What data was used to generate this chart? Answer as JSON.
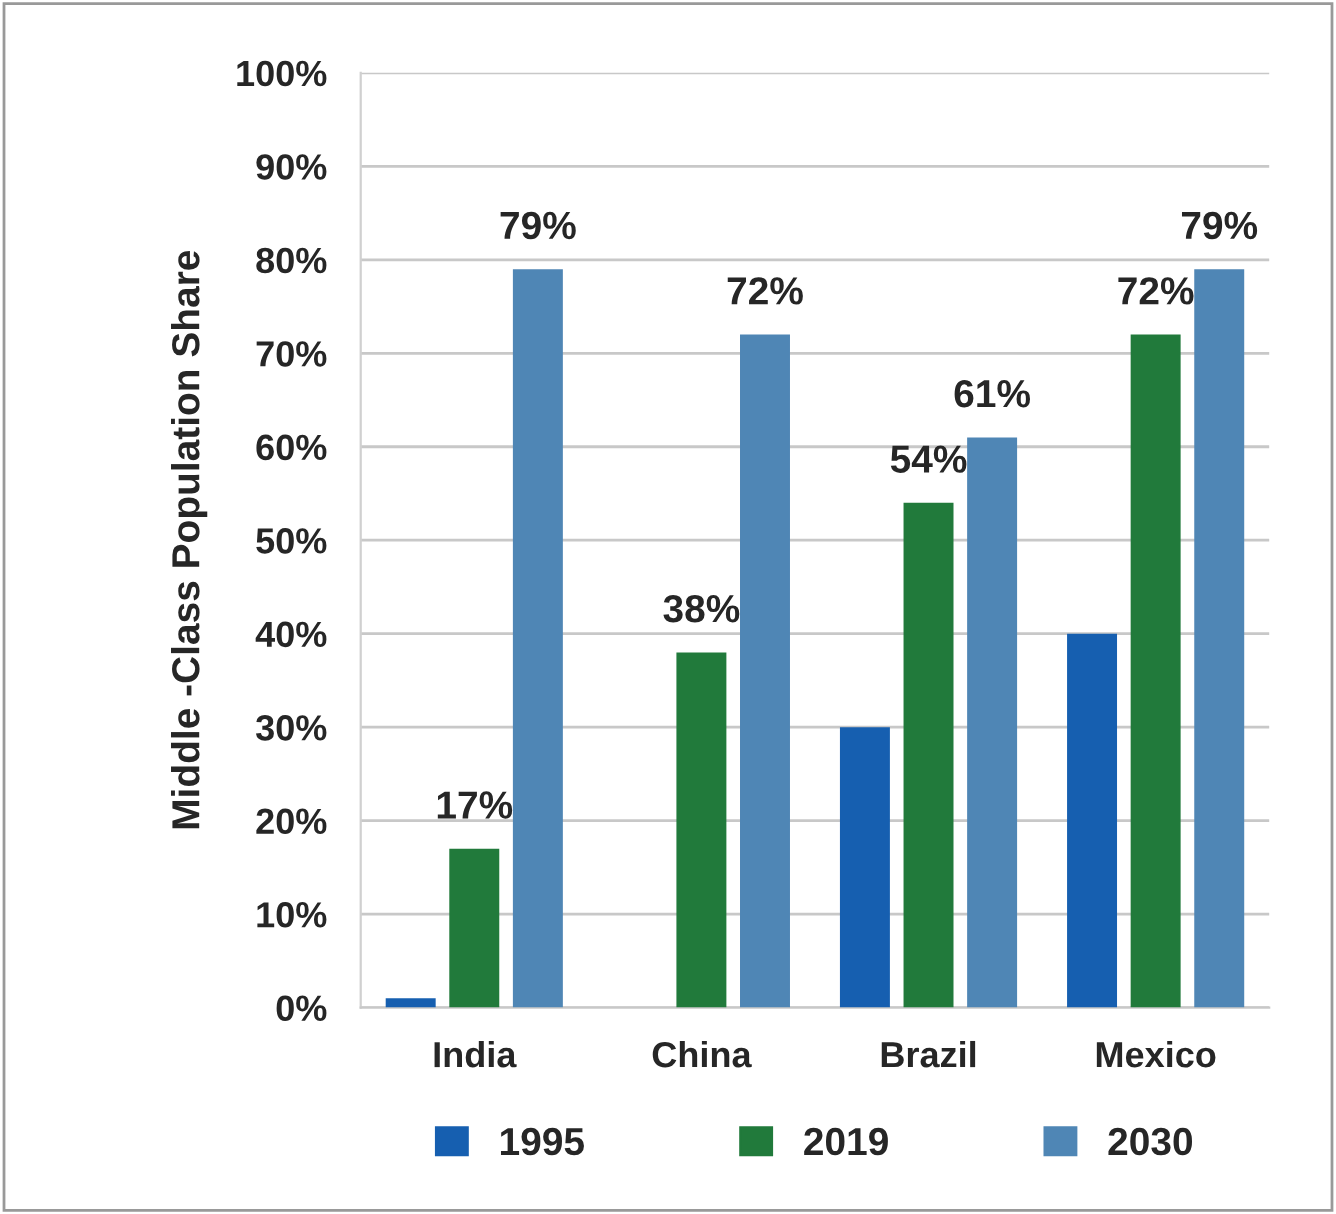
{
  "chart_data": {
    "type": "bar",
    "ylabel": "Middle -Class Population Share",
    "categories": [
      "India",
      "China",
      "Brazil",
      "Mexico"
    ],
    "series": [
      {
        "name": "1995",
        "color": "#165fb0",
        "values": [
          1,
          null,
          30,
          40
        ],
        "value_labels": [
          null,
          null,
          null,
          null
        ]
      },
      {
        "name": "2019",
        "color": "#217a3b",
        "values": [
          17,
          38,
          54,
          72
        ],
        "value_labels": [
          "17%",
          "38%",
          "54%",
          "72%"
        ]
      },
      {
        "name": "2030",
        "color": "#4f86b5",
        "values": [
          79,
          72,
          61,
          79
        ],
        "value_labels": [
          "79%",
          "72%",
          "61%",
          "79%"
        ]
      }
    ],
    "ylim": [
      0,
      100
    ],
    "yticks": [
      {
        "value": 0,
        "label": "0%"
      },
      {
        "value": 10,
        "label": "10%"
      },
      {
        "value": 20,
        "label": "20%"
      },
      {
        "value": 30,
        "label": "30%"
      },
      {
        "value": 40,
        "label": "40%"
      },
      {
        "value": 50,
        "label": "50%"
      },
      {
        "value": 60,
        "label": "60%"
      },
      {
        "value": 70,
        "label": "70%"
      },
      {
        "value": 80,
        "label": "80%"
      },
      {
        "value": 90,
        "label": "90%"
      },
      {
        "value": 100,
        "label": "100%"
      }
    ],
    "grid": "y",
    "legend": "bottom"
  }
}
